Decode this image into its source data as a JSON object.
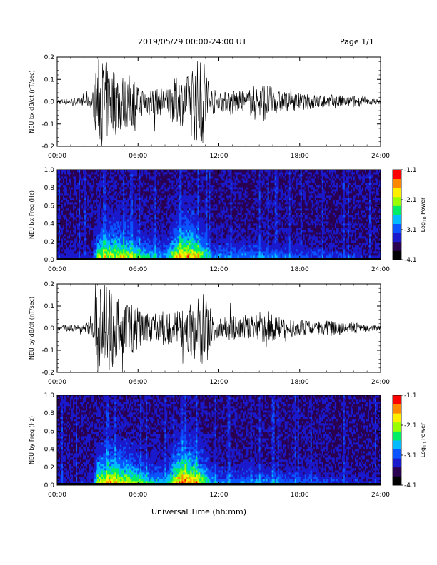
{
  "header": {
    "title": "2019/05/29   00:00-24:00 UT",
    "page": "Page 1/1"
  },
  "xaxis_title": "Universal Time (hh:mm)",
  "time_ticks": [
    "00:00",
    "06:00",
    "12:00",
    "18:00",
    "24:00"
  ],
  "colorbar": {
    "ticks": [
      "-1.1",
      "-2.1",
      "-3.1",
      "-4.1"
    ],
    "label_prefix": "Log",
    "label_sub": "10",
    "label_suffix": " Power",
    "colors": [
      "#000000",
      "#2a0050",
      "#1a1acc",
      "#0a55ff",
      "#00bbff",
      "#00ee66",
      "#99ff00",
      "#ffee00",
      "#ff8800",
      "#ff0000"
    ]
  },
  "chart_data": [
    {
      "type": "line",
      "id": "bx_wave",
      "ylabel": "NEU bx dB/dt (nT/sec)",
      "x_range_hours": [
        0,
        24
      ],
      "ylim": [
        -0.2,
        0.2
      ],
      "y_ticks": [
        "-0.2",
        "-0.1",
        "0.0",
        "0.1",
        "0.2"
      ],
      "envelope": {
        "x_hours": [
          0,
          1,
          2,
          2.6,
          3,
          3.5,
          4,
          4.5,
          5,
          5.5,
          6,
          6.5,
          7,
          7.5,
          8,
          8.5,
          9,
          9.5,
          10,
          10.5,
          11,
          11.5,
          12,
          12.5,
          13,
          13.5,
          14,
          14.5,
          15,
          15.5,
          16,
          16.5,
          17,
          17.5,
          18,
          18.5,
          19,
          19.5,
          20,
          20.5,
          21,
          21.5,
          22,
          22.5,
          23,
          24
        ],
        "amplitude": [
          0.012,
          0.015,
          0.018,
          0.03,
          0.2,
          0.2,
          0.16,
          0.15,
          0.12,
          0.13,
          0.08,
          0.06,
          0.07,
          0.06,
          0.07,
          0.09,
          0.12,
          0.1,
          0.16,
          0.2,
          0.2,
          0.06,
          0.05,
          0.045,
          0.07,
          0.05,
          0.045,
          0.07,
          0.08,
          0.09,
          0.06,
          0.05,
          0.045,
          0.04,
          0.04,
          0.035,
          0.035,
          0.03,
          0.03,
          0.035,
          0.03,
          0.02,
          0.03,
          0.02,
          0.015,
          0.012
        ]
      }
    },
    {
      "type": "heatmap",
      "id": "bx_spec",
      "ylabel": "NEU bx Freq (Hz)",
      "x_range_hours": [
        0,
        24
      ],
      "ylim": [
        0,
        1.0
      ],
      "y_ticks": [
        "0.0",
        "0.2",
        "0.4",
        "0.6",
        "0.8",
        "1.0"
      ],
      "zlim_log10_power": [
        -4.1,
        -1.1
      ],
      "activity": {
        "x_hours": [
          0,
          2.5,
          2.7,
          3,
          4,
          5,
          6,
          7,
          8,
          9,
          10,
          11,
          11.5,
          12,
          13,
          14,
          15,
          16,
          17,
          18,
          19,
          20,
          21,
          22,
          23,
          24
        ],
        "level": [
          0.1,
          0.1,
          0.2,
          0.6,
          0.7,
          0.65,
          0.5,
          0.4,
          0.35,
          0.75,
          0.8,
          0.5,
          0.3,
          0.3,
          0.3,
          0.3,
          0.3,
          0.25,
          0.25,
          0.2,
          0.2,
          0.2,
          0.15,
          0.15,
          0.1,
          0.1
        ]
      }
    },
    {
      "type": "line",
      "id": "by_wave",
      "ylabel": "NEU by dB/dt (nT/sec)",
      "x_range_hours": [
        0,
        24
      ],
      "ylim": [
        -0.2,
        0.2
      ],
      "y_ticks": [
        "-0.2",
        "-0.1",
        "0.0",
        "0.1",
        "0.2"
      ],
      "envelope": {
        "x_hours": [
          0,
          1,
          2,
          2.6,
          3,
          3.5,
          4,
          4.5,
          5,
          5.5,
          6,
          6.5,
          7,
          7.5,
          8,
          8.5,
          9,
          9.5,
          10,
          10.5,
          11,
          11.5,
          12,
          12.5,
          13,
          13.5,
          14,
          14.5,
          15,
          15.5,
          16,
          16.5,
          17,
          17.5,
          18,
          18.5,
          19,
          19.5,
          20,
          20.5,
          21,
          21.5,
          22,
          22.5,
          23,
          24
        ],
        "amplitude": [
          0.012,
          0.015,
          0.018,
          0.035,
          0.2,
          0.2,
          0.2,
          0.14,
          0.13,
          0.12,
          0.09,
          0.07,
          0.06,
          0.07,
          0.08,
          0.07,
          0.09,
          0.12,
          0.14,
          0.2,
          0.2,
          0.06,
          0.05,
          0.05,
          0.06,
          0.05,
          0.05,
          0.06,
          0.07,
          0.09,
          0.06,
          0.05,
          0.045,
          0.04,
          0.04,
          0.035,
          0.035,
          0.03,
          0.035,
          0.04,
          0.03,
          0.02,
          0.03,
          0.02,
          0.015,
          0.012
        ]
      }
    },
    {
      "type": "heatmap",
      "id": "by_spec",
      "ylabel": "NEU by Freq (Hz)",
      "x_range_hours": [
        0,
        24
      ],
      "ylim": [
        0,
        1.0
      ],
      "y_ticks": [
        "0.0",
        "0.2",
        "0.4",
        "0.6",
        "0.8",
        "1.0"
      ],
      "zlim_log10_power": [
        -4.1,
        -1.1
      ],
      "activity": {
        "x_hours": [
          0,
          2.5,
          2.7,
          3,
          4,
          5,
          6,
          7,
          8,
          9,
          10,
          11,
          11.5,
          12,
          13,
          14,
          15,
          16,
          17,
          18,
          19,
          20,
          21,
          22,
          23,
          24
        ],
        "level": [
          0.1,
          0.1,
          0.2,
          0.65,
          0.75,
          0.7,
          0.55,
          0.4,
          0.35,
          0.8,
          0.85,
          0.55,
          0.35,
          0.3,
          0.3,
          0.3,
          0.3,
          0.3,
          0.25,
          0.25,
          0.2,
          0.2,
          0.15,
          0.15,
          0.1,
          0.1
        ]
      }
    }
  ]
}
